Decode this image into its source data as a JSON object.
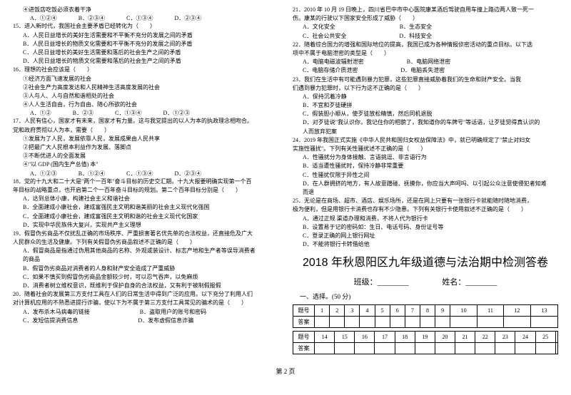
{
  "left": {
    "l0": "④进饭店吃饭必须衣着干净",
    "q14_opts": [
      "A．①②④",
      "B．②③④",
      "C．①③④",
      "D．②③④"
    ],
    "q15": "15．进入新时代，我国社会主要矛盾已经转化为（　　）",
    "q15a": "A．人民日益增长的美好生活需要和不平衡不充分的发展之间的矛盾",
    "q15b": "B．人民日益增长的物质文化需要和不平衡不充分的发展之间的矛盾",
    "q15c": "C．人民日益增长的美好生活需要和落后的社会生产之间的矛盾",
    "q15d": "D．人民日益增长的物质文化需要和落后的社会生产之间的矛盾",
    "q16": "16．理想的社会应该是（　　）",
    "q16_1": "①经济方面飞速发展的社会",
    "q16_2": "②社会生产力高度发达和人民精神生活高度发展的社会",
    "q16_3": "③人与人、人与自然和谐相处的社会",
    "q16_4": "④人人生活自由，行为自由、随心所欲的社会",
    "q16_opts": [
      "A．①②",
      "B．②③",
      "C．①③④",
      "D．①②③"
    ],
    "q17": "17．人民有信心，国家才有未来，国家才有力量。这与我党提出的以人为本的执政理念相吻合。",
    "q17b": "党和政府贯彻以人为本，需要（　　）",
    "q17_1": "①发展为了人民，发展依靠人民，发展成果由人民共享",
    "q17_2": "②把最广大人民根本利益作为发展、落脚点",
    "q17_3": "③不断优进人的全面发展",
    "q17_4": "④\"以 GDP (国内生产总值) 本\"",
    "q17_opts": [
      "A．①②③",
      "B．①②④",
      "C．①③④",
      "D．②③④"
    ],
    "q18": "18．党的十九大和二十大是\"两个一百年\"奋斗目标的历史交汇期。十九大报要明确实现第一个百",
    "q18b": "年目标的战略重点，也开启第二个一百年奋斗目标的规划。第二个百年目标分别是（　　）",
    "q18a": "A．达到总体小康，构建社会主义和谐社会",
    "q18B": "B．全面建成小康社会，建成富强民主文明和谐美丽的社会主义现代化强国",
    "q18c": "C．全面建成小康社会，建成富强民主文明和谐的社会主义现代化国家",
    "q18d": "D．实现中华民族伟大复兴，实现共产主义理想",
    "q19": "19．假冒伪劣商品不仅扰乱正确的市场秩序、严重损害著名优先单的合法权益，还直接危及广大",
    "q19b": "人民群众的生活及健康。下列有关假冒伪劣商品叙述不正确的是（　　）",
    "q19a": "A．假冒商品是指通过伪用其他商品的名称、外观或装设计、标志产地和生产者等误导消费者",
    "q19ab": "的商品",
    "q19B": "B．假冒伪劣商品对消费者的人身和财产安全造成了严重威胁",
    "q19c": "C．如果不慎买到假冒伪劣商品金额较少时，可以忍气吞声，以免麻烦",
    "q19d": "D．消费者树立维权意识，既维利于保护自身的合法权益，又有利于被制假报假",
    "q20": "20．随着社会的发展第三方支付工具在人们的日常生活中得到广泛的应用。以下充分了利用人们",
    "q20b": "对计算机应用的不熟悉进提行诈骗，使以下为不属于第三方支付工具常见的骗术的是（　　）",
    "q20a": "A．发布杀木马病毒的链接",
    "q20B": "B．盗取用户的账号和密码",
    "q20c": "C．发短信提消费信息",
    "q20d": "D．发布虚假信息诈骗"
  },
  "right": {
    "q21": "21．2010 年 10 月 19 日晚上，四川省巴中市中心医院康某酒后驾驶自用车撞上路边两人致一死一",
    "q21b": "伤。康某的行驶以下国家安全形成了威胁（　　）",
    "q21_opts": [
      "A．文化安全",
      "B．生态安全",
      "C．社会公共安全",
      "D．科技安全"
    ],
    "q22": "22．随着综合国力的增强和国际地位的提高，我国已成为各种情报侦密活动的重点目标。以下选",
    "q22b": "项中不属于电脑泄密的类型是（　　）",
    "q22a": "A．电脑电磁波辐射泄密",
    "q22B": "B．电脑网络泄密",
    "q22c": "C．电脑存储介质泄密",
    "q22d": "D．电脑丢失泄密",
    "q23": "23．我们在生活中有可能遇到暴力犯罪，这些犯罪直接威胁着我们的生命和财产安全。当我",
    "q23b": "们遇到暴力犯罪时，以下行为这不正确的是（　　）",
    "q23a": "A．保持沉着冷静",
    "q23B": "B．不宜和歹徒硬拼",
    "q23c": "C．假装胆小顺从，使歹徒放松精慎，然后同机退脱",
    "q23d": "D．对歹徒说\"我认识你，我记住你的相貌了，我知道你的车牌号\"等话语，让歹徒觉得真认识的",
    "q23db": "人而放弃犯案",
    "q24": "24．2019 年我国正式实施《中华人民共和国归女权益保障法》中，就已明确规定了\"禁止对妇女",
    "q24b": "实施性骚扰\"。下列有关性骚扰述不正确的是（　　）",
    "q24a": "A．性骚扰分为身体接触、言语挑逗、非言语行为",
    "q24B": "B．适当遭性骚扰时，保持冷静非常重要",
    "q24c": "C．性骚扰仅限于异性之间",
    "q24d": "D．在人群拥挤的地方，有人故意蹭碰、抚摸你，你应当大声呵吗、以引起公众注意使侵犯者知难",
    "q24db": "而退",
    "q25": "25．无论是在商场、超市、酒店、娱乐场所，还是在网上只要有一张银行卡就能随时随地消费，",
    "q25b": "极为便利，但是用银行卡消费也存有不少隐患。下列有关银行卡使用叙述不正确的是（　　）",
    "q25a": "A．通过正规 渠道办理和消费，不将人代为银行卡",
    "q25B": "B．设置易于记的密码如：生日、电话号码、身份证号等",
    "q25c": "C．登录正确的网上银行网址",
    "q25d": "D．不能将银行卡转借给他",
    "title": "2018 年秋恩阳区九年级道德与法治期中检测答卷",
    "class_label": "班级：",
    "name_label": "姓名：",
    "section1": "一、选择。(50 分)",
    "t1": [
      "题号",
      "1",
      "2",
      "3",
      "4",
      "5",
      "6",
      "7",
      "8",
      "9",
      "10",
      "11",
      "12",
      "13"
    ],
    "ans": "答案",
    "t2": [
      "题号",
      "14",
      "15",
      "16",
      "17",
      "18",
      "19",
      "20",
      "21",
      "22",
      "23",
      "24",
      "25",
      ""
    ]
  },
  "footer": "第 2 页"
}
